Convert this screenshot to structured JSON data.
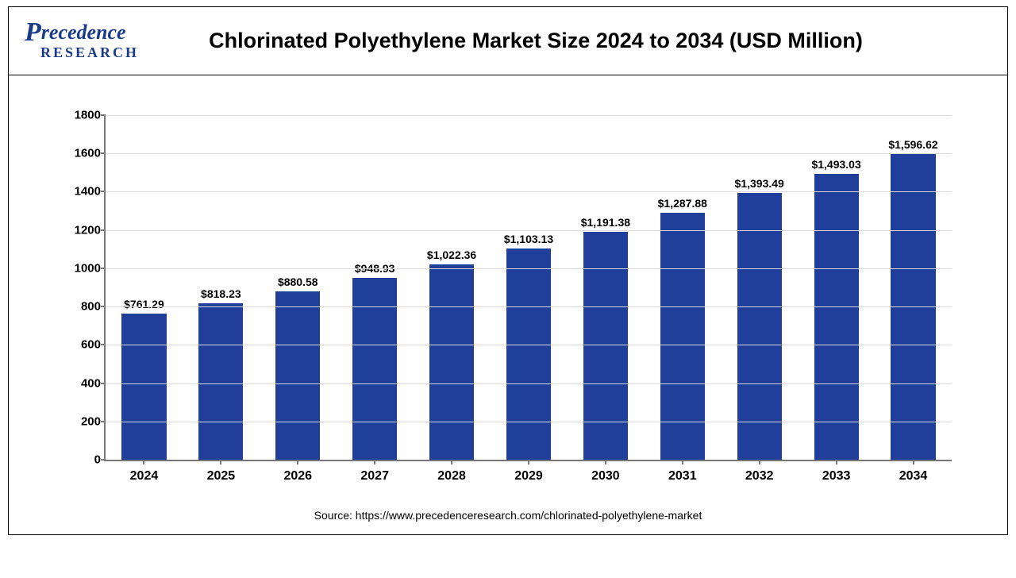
{
  "logo": {
    "brand_top": "recedence",
    "brand_p": "P",
    "brand_sub": "RESEARCH"
  },
  "chart": {
    "type": "bar",
    "title": "Chlorinated Polyethylene Market Size 2024 to 2034 (USD Million)",
    "categories": [
      "2024",
      "2025",
      "2026",
      "2027",
      "2028",
      "2029",
      "2030",
      "2031",
      "2032",
      "2033",
      "2034"
    ],
    "values": [
      761.29,
      818.23,
      880.58,
      948.93,
      1022.36,
      1103.13,
      1191.38,
      1287.88,
      1393.49,
      1493.03,
      1596.62
    ],
    "value_labels": [
      "$761.29",
      "$818.23",
      "$880.58",
      "$948.93",
      "$1,022.36",
      "$1,103.13",
      "$1,191.38",
      "$1,287.88",
      "$1,393.49",
      "$1,493.03",
      "$1,596.62"
    ],
    "bar_color": "#1f3f9a",
    "ylim": [
      0,
      1800
    ],
    "yticks": [
      0,
      200,
      400,
      600,
      800,
      1000,
      1200,
      1400,
      1600,
      1800
    ],
    "grid_color": "#d9d9d9",
    "axis_color": "#777777",
    "background_color": "#ffffff",
    "title_fontsize": 27,
    "label_fontsize": 14,
    "axis_label_fontsize": 15
  },
  "source_text": "Source: https://www.precedenceresearch.com/chlorinated-polyethylene-market"
}
